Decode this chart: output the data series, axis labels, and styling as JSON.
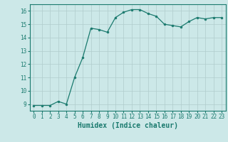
{
  "x": [
    0,
    1,
    2,
    3,
    4,
    5,
    6,
    7,
    8,
    9,
    10,
    11,
    12,
    13,
    14,
    15,
    16,
    17,
    18,
    19,
    20,
    21,
    22,
    23
  ],
  "y": [
    8.9,
    8.9,
    8.9,
    9.2,
    9.0,
    11.0,
    12.5,
    14.7,
    14.6,
    14.4,
    15.5,
    15.9,
    16.1,
    16.1,
    15.8,
    15.6,
    15.0,
    14.9,
    14.8,
    15.2,
    15.5,
    15.4,
    15.5,
    15.5
  ],
  "line_color": "#1a7a6e",
  "marker": "o",
  "markersize": 2.0,
  "linewidth": 0.9,
  "bg_color": "#cce8e8",
  "grid_color": "#b0cccc",
  "xlabel": "Humidex (Indice chaleur)",
  "xlim": [
    -0.5,
    23.5
  ],
  "ylim": [
    8.5,
    16.5
  ],
  "yticks": [
    9,
    10,
    11,
    12,
    13,
    14,
    15,
    16
  ],
  "xticks": [
    0,
    1,
    2,
    3,
    4,
    5,
    6,
    7,
    8,
    9,
    10,
    11,
    12,
    13,
    14,
    15,
    16,
    17,
    18,
    19,
    20,
    21,
    22,
    23
  ],
  "tick_fontsize": 5.5,
  "xlabel_fontsize": 7.0
}
